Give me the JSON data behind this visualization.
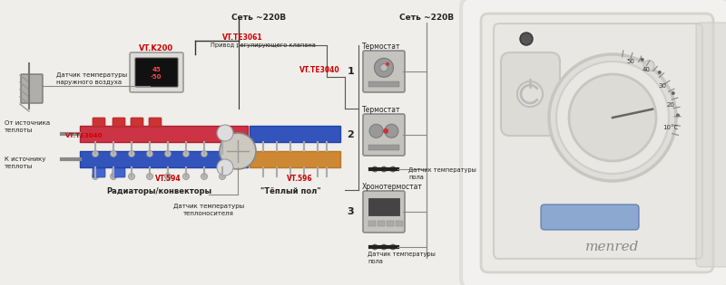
{
  "bg_color": "#f0eeea",
  "fig_width": 8.0,
  "fig_height": 3.15,
  "dpi": 100,
  "left_labels": {
    "sensor_top": "Датчик температуры\nнаружного воздуха",
    "from_source": "От источника\nтеплоты",
    "to_source": "К источнику\nтеплоты",
    "radiators": "Радиаторы/конвекторы",
    "warm_floor": "\"Тёплый пол\"",
    "sensor_bottom": "Датчик температуры\nтеплоносителя",
    "net_220": "Сеть ~220В",
    "vt_k200": "VT.K200",
    "vt_te3061": "VT.TE3061",
    "privod": "Привод регулирующего клапана",
    "vt_te3040_top": "VT.TE3040",
    "vt_te3040_bot": "VT.TE3040",
    "vt594": "VT.594",
    "vt596": "VT.596"
  },
  "right_labels": {
    "n1": "1",
    "n2": "2",
    "n3": "3",
    "termostat1": "Термостат",
    "termostat2": "Термостат",
    "hronotermostat": "Хронотермостат",
    "net_220": "Сеть ~220В",
    "sensor_floor1": "Датчик температуры\nпола",
    "sensor_floor2": "Датчик температуры\nпола"
  },
  "menred_label": "menred",
  "red_color": "#cc0000",
  "pipe_red": "#cc3344",
  "pipe_blue": "#3355bb",
  "pipe_orange": "#cc8833",
  "text_dark": "#222222",
  "text_gray": "#555555",
  "wire_color": "#888888",
  "device_fill": "#c8c6c2",
  "device_edge": "#999999"
}
